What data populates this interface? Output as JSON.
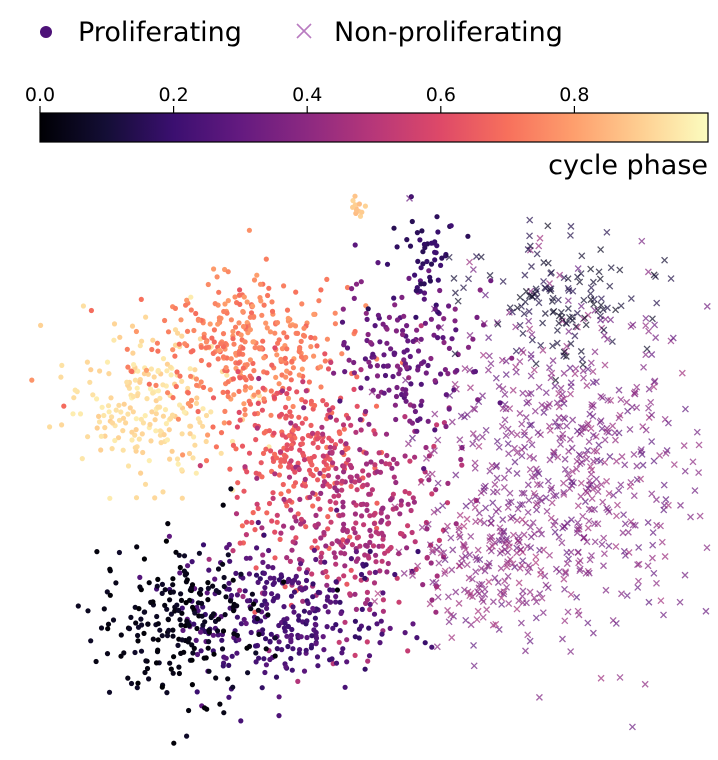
{
  "chart_data": {
    "type": "scatter",
    "title": "",
    "xlabel": "",
    "ylabel": "",
    "axes_visible": false,
    "grid": false,
    "legend": {
      "placement": "top-left",
      "entries": [
        {
          "label": "Proliferating",
          "marker": "circle",
          "color": "#4d1278"
        },
        {
          "label": "Non-proliferating",
          "marker": "x",
          "color": "#b87bc0"
        }
      ]
    },
    "colorbar": {
      "label": "cycle phase",
      "colormap": "magma",
      "range": [
        0.0,
        1.0
      ],
      "orientation": "horizontal",
      "placement": "top",
      "ticks": [
        {
          "value": 0.0,
          "label": "0.0"
        },
        {
          "value": 0.2,
          "label": "0.2"
        },
        {
          "value": 0.4,
          "label": "0.4"
        },
        {
          "value": 0.6,
          "label": "0.6"
        },
        {
          "value": 0.8,
          "label": "0.8"
        }
      ]
    },
    "series": [
      {
        "name": "Proliferating",
        "marker": "circle",
        "color_by": "cycle phase",
        "clusters": [
          {
            "x": -2.2,
            "y": 2.0,
            "sx": 0.62,
            "sy": 0.62,
            "n": 210,
            "phase": [
              0.9,
              0.97
            ]
          },
          {
            "x": -0.9,
            "y": 2.9,
            "sx": 0.75,
            "sy": 0.6,
            "n": 330,
            "phase": [
              0.68,
              0.8
            ]
          },
          {
            "x": 0.0,
            "y": 1.2,
            "sx": 0.55,
            "sy": 0.75,
            "n": 240,
            "phase": [
              0.6,
              0.7
            ]
          },
          {
            "x": 0.9,
            "y": 0.2,
            "sx": 0.7,
            "sy": 0.9,
            "n": 330,
            "phase": [
              0.42,
              0.55
            ]
          },
          {
            "x": 1.6,
            "y": 2.7,
            "sx": 0.5,
            "sy": 0.65,
            "n": 170,
            "phase": [
              0.25,
              0.4
            ]
          },
          {
            "x": -0.2,
            "y": -1.4,
            "sx": 0.8,
            "sy": 0.6,
            "n": 300,
            "phase": [
              0.18,
              0.3
            ]
          },
          {
            "x": -1.7,
            "y": -1.5,
            "sx": 0.6,
            "sy": 0.65,
            "n": 220,
            "phase": [
              0.0,
              0.08
            ]
          },
          {
            "x": 1.9,
            "y": 4.3,
            "sx": 0.25,
            "sy": 0.45,
            "n": 50,
            "phase": [
              0.15,
              0.22
            ]
          },
          {
            "x": 0.9,
            "y": 5.15,
            "sx": 0.06,
            "sy": 0.08,
            "n": 12,
            "phase": [
              0.85,
              0.92
            ]
          }
        ]
      },
      {
        "name": "Non-proliferating",
        "marker": "x",
        "alpha": 0.7,
        "color_by": "cycle phase",
        "clusters": [
          {
            "x": 3.9,
            "y": 1.0,
            "sx": 0.95,
            "sy": 1.35,
            "n": 620,
            "phase": [
              0.28,
              0.45
            ]
          },
          {
            "x": 3.9,
            "y": 3.7,
            "sx": 0.65,
            "sy": 0.45,
            "n": 130,
            "phase": [
              0.05,
              0.15
            ]
          },
          {
            "x": 2.8,
            "y": -0.6,
            "sx": 0.6,
            "sy": 0.6,
            "n": 130,
            "phase": [
              0.35,
              0.48
            ]
          }
        ]
      }
    ]
  }
}
